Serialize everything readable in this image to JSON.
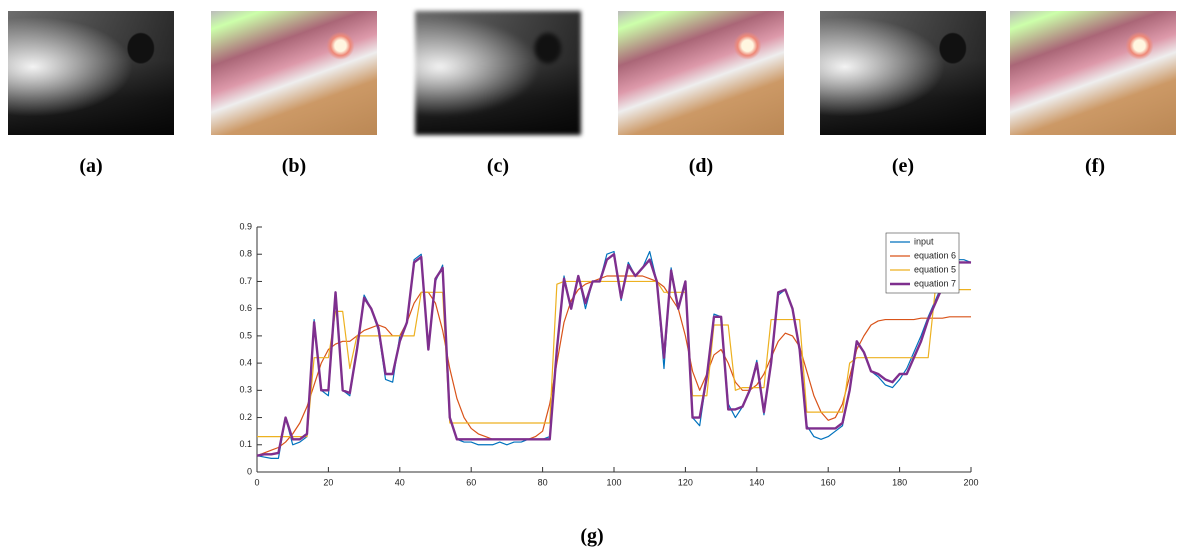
{
  "panels": [
    {
      "label": "(a)"
    },
    {
      "label": "(b)"
    },
    {
      "label": "(c)"
    },
    {
      "label": "(d)"
    },
    {
      "label": "(e)"
    },
    {
      "label": "(f)"
    }
  ],
  "caption": "(g)",
  "chart_data": {
    "type": "line",
    "x": [
      0,
      2,
      4,
      6,
      8,
      10,
      12,
      14,
      16,
      18,
      20,
      22,
      24,
      26,
      28,
      30,
      32,
      34,
      36,
      38,
      40,
      42,
      44,
      46,
      48,
      50,
      52,
      54,
      56,
      58,
      60,
      62,
      64,
      66,
      68,
      70,
      72,
      74,
      76,
      78,
      80,
      82,
      84,
      86,
      88,
      90,
      92,
      94,
      96,
      98,
      100,
      102,
      104,
      106,
      108,
      110,
      112,
      114,
      116,
      118,
      120,
      122,
      124,
      126,
      128,
      130,
      132,
      134,
      136,
      138,
      140,
      142,
      144,
      146,
      148,
      150,
      152,
      154,
      156,
      158,
      160,
      162,
      164,
      166,
      168,
      170,
      172,
      174,
      176,
      178,
      180,
      182,
      184,
      186,
      188,
      190,
      192,
      194,
      196,
      198,
      200
    ],
    "series": [
      {
        "name": "input",
        "color": "#0072bd",
        "width": 1.2,
        "values": [
          0.06,
          0.055,
          0.05,
          0.05,
          0.2,
          0.1,
          0.11,
          0.13,
          0.56,
          0.3,
          0.28,
          0.66,
          0.3,
          0.28,
          0.45,
          0.65,
          0.6,
          0.52,
          0.34,
          0.33,
          0.5,
          0.55,
          0.78,
          0.8,
          0.45,
          0.7,
          0.76,
          0.2,
          0.12,
          0.11,
          0.11,
          0.1,
          0.1,
          0.1,
          0.11,
          0.1,
          0.11,
          0.11,
          0.12,
          0.12,
          0.12,
          0.13,
          0.45,
          0.72,
          0.6,
          0.72,
          0.6,
          0.7,
          0.7,
          0.8,
          0.81,
          0.63,
          0.77,
          0.72,
          0.75,
          0.81,
          0.7,
          0.38,
          0.75,
          0.6,
          0.7,
          0.2,
          0.17,
          0.35,
          0.58,
          0.57,
          0.25,
          0.2,
          0.24,
          0.3,
          0.41,
          0.21,
          0.4,
          0.65,
          0.67,
          0.6,
          0.45,
          0.17,
          0.13,
          0.12,
          0.13,
          0.15,
          0.17,
          0.3,
          0.48,
          0.44,
          0.37,
          0.35,
          0.32,
          0.31,
          0.34,
          0.38,
          0.44,
          0.5,
          0.57,
          0.63,
          0.69,
          0.74,
          0.78,
          0.78,
          0.77
        ]
      },
      {
        "name": "equation 6",
        "color": "#d95319",
        "width": 1.2,
        "values": [
          0.06,
          0.07,
          0.08,
          0.09,
          0.11,
          0.14,
          0.18,
          0.24,
          0.32,
          0.4,
          0.45,
          0.47,
          0.48,
          0.48,
          0.5,
          0.52,
          0.53,
          0.54,
          0.53,
          0.5,
          0.5,
          0.55,
          0.62,
          0.66,
          0.66,
          0.62,
          0.52,
          0.38,
          0.27,
          0.2,
          0.16,
          0.14,
          0.13,
          0.12,
          0.12,
          0.12,
          0.12,
          0.12,
          0.12,
          0.13,
          0.15,
          0.25,
          0.4,
          0.55,
          0.63,
          0.67,
          0.69,
          0.7,
          0.71,
          0.72,
          0.72,
          0.72,
          0.72,
          0.72,
          0.72,
          0.71,
          0.7,
          0.68,
          0.64,
          0.6,
          0.5,
          0.37,
          0.3,
          0.36,
          0.43,
          0.45,
          0.4,
          0.33,
          0.3,
          0.3,
          0.32,
          0.36,
          0.42,
          0.48,
          0.51,
          0.5,
          0.46,
          0.37,
          0.28,
          0.22,
          0.19,
          0.2,
          0.25,
          0.35,
          0.45,
          0.5,
          0.54,
          0.555,
          0.56,
          0.56,
          0.56,
          0.56,
          0.56,
          0.565,
          0.565,
          0.565,
          0.565,
          0.57,
          0.57,
          0.57,
          0.57
        ]
      },
      {
        "name": "equation 5",
        "color": "#edb120",
        "width": 1.2,
        "values": [
          0.13,
          0.13,
          0.13,
          0.13,
          0.13,
          0.13,
          0.13,
          0.13,
          0.42,
          0.42,
          0.42,
          0.59,
          0.59,
          0.38,
          0.5,
          0.5,
          0.5,
          0.5,
          0.5,
          0.5,
          0.5,
          0.5,
          0.5,
          0.66,
          0.66,
          0.66,
          0.66,
          0.18,
          0.18,
          0.18,
          0.18,
          0.18,
          0.18,
          0.18,
          0.18,
          0.18,
          0.18,
          0.18,
          0.18,
          0.18,
          0.18,
          0.18,
          0.69,
          0.7,
          0.7,
          0.7,
          0.7,
          0.7,
          0.7,
          0.7,
          0.7,
          0.7,
          0.7,
          0.7,
          0.7,
          0.7,
          0.7,
          0.66,
          0.66,
          0.66,
          0.66,
          0.28,
          0.28,
          0.28,
          0.54,
          0.54,
          0.54,
          0.3,
          0.31,
          0.31,
          0.31,
          0.31,
          0.56,
          0.56,
          0.56,
          0.56,
          0.56,
          0.22,
          0.22,
          0.22,
          0.22,
          0.22,
          0.22,
          0.4,
          0.42,
          0.42,
          0.42,
          0.42,
          0.42,
          0.42,
          0.42,
          0.42,
          0.42,
          0.42,
          0.42,
          0.67,
          0.67,
          0.67,
          0.67,
          0.67,
          0.67
        ]
      },
      {
        "name": "equation 7",
        "color": "#7e2f8e",
        "width": 2.4,
        "values": [
          0.06,
          0.065,
          0.065,
          0.07,
          0.2,
          0.12,
          0.12,
          0.14,
          0.55,
          0.3,
          0.3,
          0.66,
          0.3,
          0.29,
          0.45,
          0.64,
          0.6,
          0.53,
          0.36,
          0.36,
          0.48,
          0.55,
          0.77,
          0.79,
          0.45,
          0.71,
          0.75,
          0.2,
          0.12,
          0.12,
          0.12,
          0.12,
          0.12,
          0.12,
          0.12,
          0.12,
          0.12,
          0.12,
          0.12,
          0.12,
          0.12,
          0.12,
          0.45,
          0.71,
          0.6,
          0.72,
          0.62,
          0.7,
          0.7,
          0.78,
          0.8,
          0.64,
          0.76,
          0.72,
          0.75,
          0.78,
          0.7,
          0.42,
          0.74,
          0.6,
          0.7,
          0.2,
          0.2,
          0.35,
          0.57,
          0.57,
          0.23,
          0.23,
          0.24,
          0.3,
          0.4,
          0.22,
          0.4,
          0.66,
          0.67,
          0.6,
          0.45,
          0.16,
          0.16,
          0.16,
          0.16,
          0.16,
          0.18,
          0.3,
          0.48,
          0.44,
          0.37,
          0.36,
          0.34,
          0.33,
          0.36,
          0.36,
          0.42,
          0.48,
          0.56,
          0.62,
          0.68,
          0.73,
          0.77,
          0.77,
          0.77
        ]
      }
    ],
    "xlim": [
      0,
      200
    ],
    "xticks": [
      0,
      20,
      40,
      60,
      80,
      100,
      120,
      140,
      160,
      180,
      200
    ],
    "ylim": [
      0,
      0.9
    ],
    "yticks": [
      0,
      0.1,
      0.2,
      0.3,
      0.4,
      0.5,
      0.6,
      0.7,
      0.8,
      0.9
    ],
    "legend": "top-right"
  }
}
